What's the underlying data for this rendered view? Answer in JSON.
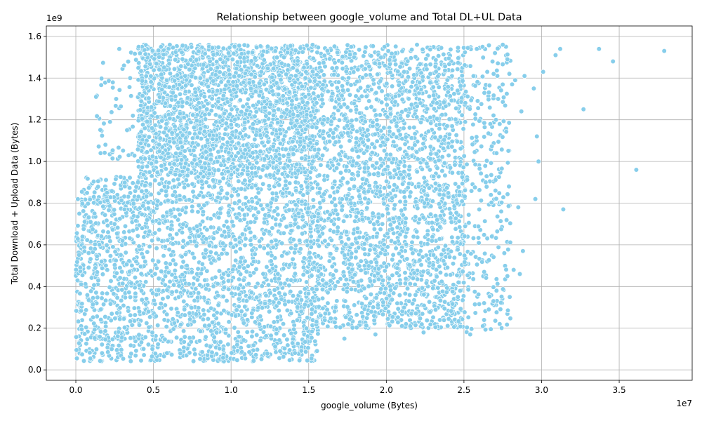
{
  "chart_data": {
    "type": "scatter",
    "title": "Relationship between google_volume and Total DL+UL Data",
    "xlabel": "google_volume (Bytes)",
    "ylabel": "Total Download + Upload Data (Bytes)",
    "x_offset_label": "1e7",
    "y_offset_label": "1e9",
    "xlim": [
      -1900000,
      39700000
    ],
    "ylim": [
      -50000000,
      1650000000
    ],
    "x_ticks": [
      0,
      5000000,
      10000000,
      15000000,
      20000000,
      25000000,
      30000000,
      35000000
    ],
    "x_tick_labels": [
      "0.0",
      "0.5",
      "1.0",
      "1.5",
      "2.0",
      "2.5",
      "3.0",
      "3.5"
    ],
    "y_ticks": [
      0,
      200000000,
      400000000,
      600000000,
      800000000,
      1000000000,
      1200000000,
      1400000000,
      1600000000
    ],
    "y_tick_labels": [
      "0.0",
      "0.2",
      "0.4",
      "0.6",
      "0.8",
      "1.0",
      "1.2",
      "1.4",
      "1.6"
    ],
    "grid": true,
    "marker_color": "#87ceeb",
    "marker_edge_color": "#ffffff",
    "regions": [
      {
        "x_range": [
          0,
          15600000
        ],
        "y_range": [
          40000000,
          930000000
        ],
        "density": "very high"
      },
      {
        "x_range": [
          4000000,
          15500000
        ],
        "y_range": [
          930000000,
          1560000000
        ],
        "density": "very high"
      },
      {
        "x_range": [
          15500000,
          25000000
        ],
        "y_range": [
          200000000,
          1560000000
        ],
        "density": "very high"
      },
      {
        "x_range": [
          25000000,
          28000000
        ],
        "y_range": [
          170000000,
          1560000000
        ],
        "density": "medium"
      },
      {
        "x_range": [
          1300000,
          4000000
        ],
        "y_range": [
          1000000000,
          1540000000
        ],
        "density": "low"
      }
    ],
    "points": [
      [
        1300000,
        1310000000
      ],
      [
        2200000,
        1190000000
      ],
      [
        2600000,
        1300000000
      ],
      [
        2800000,
        1540000000
      ],
      [
        3100000,
        1460000000
      ],
      [
        3300000,
        1150000000
      ],
      [
        3400000,
        1030000000
      ],
      [
        3500000,
        1400000000
      ],
      [
        27500000,
        1560000000
      ],
      [
        27800000,
        1490000000
      ],
      [
        28100000,
        1370000000
      ],
      [
        28300000,
        1390000000
      ],
      [
        28700000,
        1240000000
      ],
      [
        28900000,
        1410000000
      ],
      [
        29500000,
        1350000000
      ],
      [
        29700000,
        1120000000
      ],
      [
        29800000,
        1000000000
      ],
      [
        30100000,
        1430000000
      ],
      [
        29600000,
        820000000
      ],
      [
        28800000,
        570000000
      ],
      [
        28200000,
        480000000
      ],
      [
        27800000,
        450000000
      ],
      [
        27300000,
        220000000
      ],
      [
        25400000,
        170000000
      ],
      [
        26600000,
        290000000
      ],
      [
        26900000,
        330000000
      ],
      [
        27900000,
        880000000
      ],
      [
        28500000,
        780000000
      ],
      [
        28600000,
        460000000
      ],
      [
        30900000,
        1510000000
      ],
      [
        31200000,
        1540000000
      ],
      [
        31400000,
        770000000
      ],
      [
        32700000,
        1250000000
      ],
      [
        33700000,
        1540000000
      ],
      [
        34600000,
        1480000000
      ],
      [
        36100000,
        960000000
      ],
      [
        37900000,
        1530000000
      ],
      [
        17300000,
        150000000
      ],
      [
        19300000,
        170000000
      ],
      [
        22400000,
        180000000
      ],
      [
        26200000,
        1550000000
      ],
      [
        27000000,
        1520000000
      ],
      [
        26500000,
        1430000000
      ],
      [
        27200000,
        1300000000
      ],
      [
        26700000,
        1180000000
      ],
      [
        27100000,
        1040000000
      ],
      [
        26400000,
        900000000
      ],
      [
        27400000,
        760000000
      ],
      [
        26800000,
        640000000
      ],
      [
        27600000,
        560000000
      ],
      [
        26300000,
        470000000
      ],
      [
        27100000,
        380000000
      ]
    ]
  }
}
